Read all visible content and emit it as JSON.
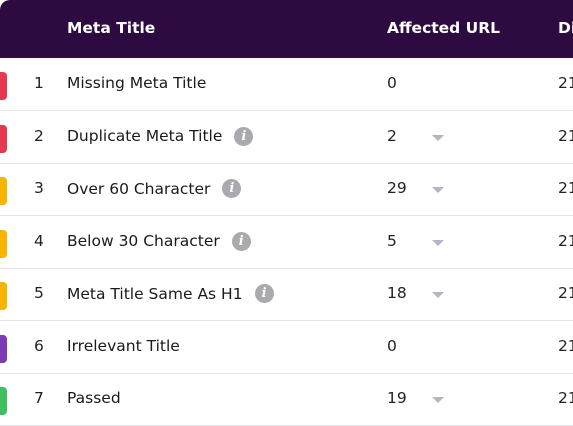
{
  "header": {
    "col_title": "Meta Title",
    "col_url": "Affected URL",
    "col_cut": "Di"
  },
  "rows": [
    {
      "num": "1",
      "label": "Missing Meta Title",
      "count": "0",
      "cut": "21",
      "color": "#e53950",
      "info": false,
      "caret": false
    },
    {
      "num": "2",
      "label": "Duplicate Meta Title",
      "count": "2",
      "cut": "21",
      "color": "#e53950",
      "info": true,
      "caret": true
    },
    {
      "num": "3",
      "label": "Over 60 Character",
      "count": "29",
      "cut": "21",
      "color": "#f7b500",
      "info": true,
      "caret": true
    },
    {
      "num": "4",
      "label": "Below 30 Character",
      "count": "5",
      "cut": "21",
      "color": "#f7b500",
      "info": true,
      "caret": true
    },
    {
      "num": "5",
      "label": "Meta Title Same As H1",
      "count": "18",
      "cut": "21",
      "color": "#f7b500",
      "info": true,
      "caret": true
    },
    {
      "num": "6",
      "label": "Irrelevant Title",
      "count": "0",
      "cut": "21",
      "color": "#7b3bb3",
      "info": false,
      "caret": false
    },
    {
      "num": "7",
      "label": "Passed",
      "count": "19",
      "cut": "21",
      "color": "#3fbf62",
      "info": false,
      "caret": true
    }
  ],
  "icons": {
    "info": "info-icon",
    "caret": "chevron-down-icon",
    "info_glyph": "i"
  }
}
